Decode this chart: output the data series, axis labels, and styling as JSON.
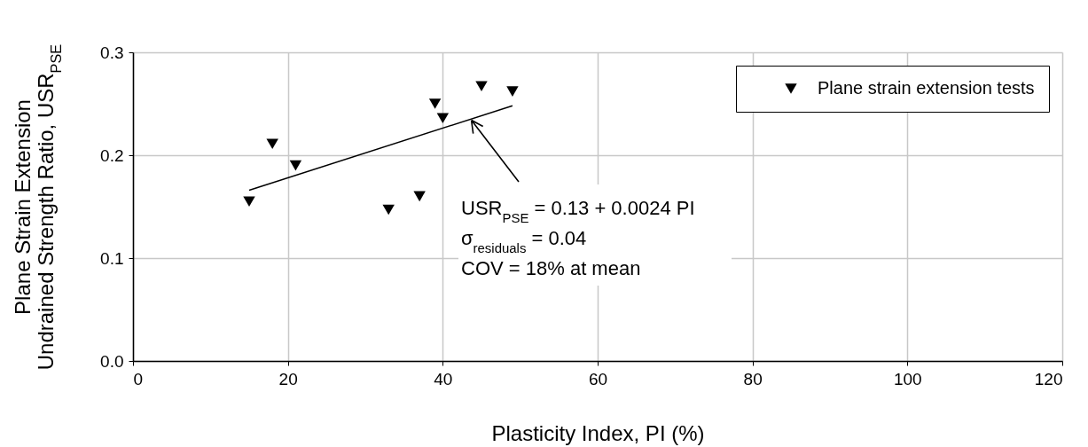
{
  "chart_data": {
    "type": "scatter",
    "xlabel": "Plasticity Index, PI (%)",
    "ylabel": "Plane Strain Extension\nUndrained Strength Ratio, USR$_{PSE}$",
    "series": [
      {
        "name": "Plane strain extension tests",
        "color": "#000000",
        "marker": "triangle",
        "x": [
          15,
          18,
          21,
          33,
          37,
          39,
          40,
          45,
          49
        ],
        "values": [
          0.155,
          0.211,
          0.19,
          0.147,
          0.16,
          0.25,
          0.236,
          0.267,
          0.262
        ]
      },
      {
        "type": "line",
        "color": "#000000",
        "x": [
          15,
          49
        ],
        "values": [
          0.166,
          0.248
        ]
      }
    ],
    "xlim": [
      0,
      120
    ],
    "xticks": [
      0,
      20,
      40,
      60,
      80,
      100,
      120
    ],
    "ylim": [
      0,
      0.3
    ],
    "yticks": [
      {
        "value": 0,
        "label": "0.0"
      },
      0.1,
      0.2,
      0.3
    ],
    "annotations": [
      {
        "text": "USR$_{PSE}$ = 0.13 + 0.0024 PI",
        "x": 43.7,
        "y": 0.234
      },
      "σ$_{residuals}$ = 0.04",
      "COV = 18% at mean"
    ],
    "grid": true,
    "legend": "top right"
  }
}
